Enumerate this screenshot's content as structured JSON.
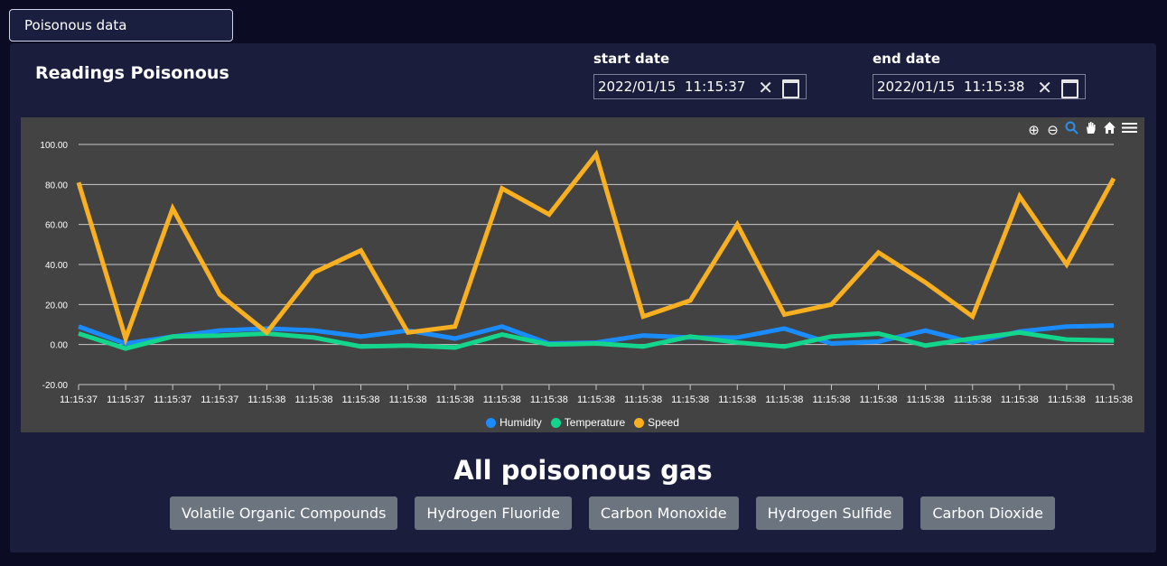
{
  "top_tab": {
    "label": "Poisonous data"
  },
  "panel": {
    "title": "Readings Poisonous",
    "start_date": {
      "label": "start date",
      "value": "2022/01/15  11:15:37"
    },
    "end_date": {
      "label": "end date",
      "value": "2022/01/15  11:15:38"
    }
  },
  "toolbar": {
    "zoom_in_icon": "⊕",
    "zoom_out_icon": "⊖",
    "zoom_select_icon": "🔍",
    "pan_icon": "✋",
    "home_icon": "⌂",
    "menu_icon": "≡"
  },
  "chart_data": {
    "type": "line",
    "categories": [
      "11:15:37",
      "11:15:37",
      "11:15:37",
      "11:15:37",
      "11:15:38",
      "11:15:38",
      "11:15:38",
      "11:15:38",
      "11:15:38",
      "11:15:38",
      "11:15:38",
      "11:15:38",
      "11:15:38",
      "11:15:38",
      "11:15:38",
      "11:15:38",
      "11:15:38",
      "11:15:38",
      "11:15:38",
      "11:15:38",
      "11:15:38",
      "11:15:38",
      "11:15:38"
    ],
    "y_ticks": [
      "100.00",
      "80.00",
      "60.00",
      "40.00",
      "20.00",
      "0.00",
      "-20.00"
    ],
    "ylim": [
      -20,
      100
    ],
    "grid": true,
    "legend_position": "bottom",
    "series": [
      {
        "name": "Humidity",
        "color": "#1a8cff",
        "values": [
          9,
          0.5,
          4,
          7,
          8,
          7,
          4,
          7,
          3,
          9,
          0.5,
          1,
          4.5,
          3.5,
          3.5,
          8,
          0.5,
          1.5,
          7,
          1,
          6.5,
          9,
          9.5
        ]
      },
      {
        "name": "Temperature",
        "color": "#13d68c",
        "values": [
          5.5,
          -2,
          4,
          4.5,
          5.5,
          3.5,
          -1,
          -0.5,
          -1.5,
          5,
          0,
          0.5,
          -1,
          4,
          1,
          -1,
          4,
          5.5,
          -0.5,
          3,
          6,
          2.5,
          2
        ]
      },
      {
        "name": "Speed",
        "color": "#f9b020",
        "values": [
          81,
          3,
          68,
          25,
          6,
          36,
          47,
          6,
          9,
          78,
          65,
          95,
          14,
          22,
          60,
          15,
          20,
          46,
          31,
          14,
          74,
          40,
          83
        ]
      }
    ]
  },
  "section": {
    "title": "All poisonous gas"
  },
  "gas_buttons": [
    "Volatile Organic Compounds",
    "Hydrogen Fluoride",
    "Carbon Monoxide",
    "Hydrogen Sulfide",
    "Carbon Dioxide"
  ]
}
